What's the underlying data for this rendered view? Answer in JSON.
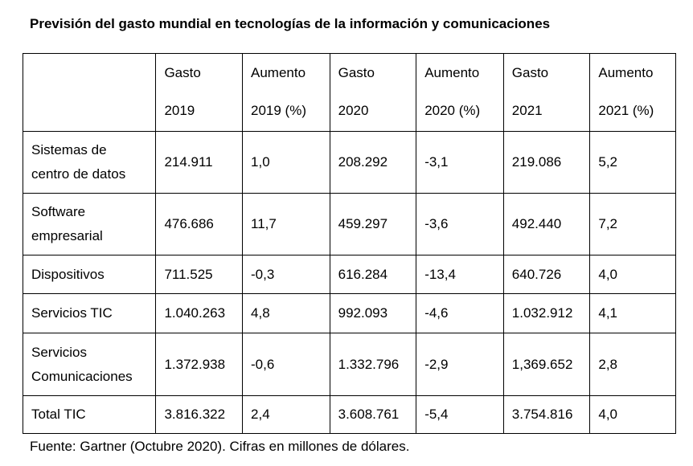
{
  "title": "Previsión del gasto mundial en tecnologías de la información y comunicaciones",
  "header": {
    "blank": "",
    "columns": [
      {
        "line1": "Gasto",
        "line2": "2019"
      },
      {
        "line1": "Aumento",
        "line2": "2019 (%)"
      },
      {
        "line1": "Gasto",
        "line2": "2020"
      },
      {
        "line1": "Aumento",
        "line2": "2020 (%)"
      },
      {
        "line1": "Gasto",
        "line2": "2021"
      },
      {
        "line1": "Aumento",
        "line2": "2021 (%)"
      }
    ]
  },
  "rows": [
    {
      "label_line1": "Sistemas de",
      "label_line2": "centro de datos",
      "values": [
        "214.911",
        "1,0",
        "208.292",
        "-3,1",
        "219.086",
        "5,2"
      ]
    },
    {
      "label_line1": "Software",
      "label_line2": "empresarial",
      "values": [
        "476.686",
        "11,7",
        "459.297",
        "-3,6",
        "492.440",
        "7,2"
      ]
    },
    {
      "label_line1": "Dispositivos",
      "label_line2": "",
      "values": [
        "711.525",
        "-0,3",
        "616.284",
        "-13,4",
        "640.726",
        "4,0"
      ]
    },
    {
      "label_line1": "Servicios TIC",
      "label_line2": "",
      "values": [
        "1.040.263",
        "4,8",
        "992.093",
        "-4,6",
        "1.032.912",
        "4,1"
      ]
    },
    {
      "label_line1": "Servicios",
      "label_line2": "Comunicaciones",
      "values": [
        "1.372.938",
        "-0,6",
        "1.332.796",
        "-2,9",
        "1,369.652",
        "2,8"
      ]
    },
    {
      "label_line1": "Total TIC",
      "label_line2": "",
      "values": [
        "3.816.322",
        "2,4",
        "3.608.761",
        "-5,4",
        "3.754.816",
        "4,0"
      ]
    }
  ],
  "footer": "Fuente: Gartner (Octubre 2020). Cifras en millones de dólares."
}
